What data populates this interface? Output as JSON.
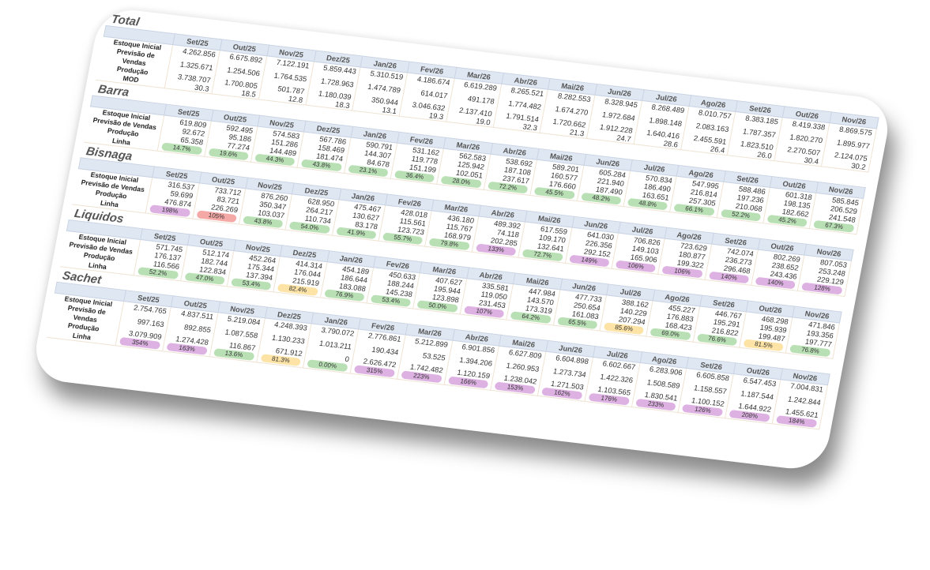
{
  "months": [
    "Set/25",
    "Out/25",
    "Nov/25",
    "Dez/25",
    "Jan/26",
    "Fev/26",
    "Mar/26",
    "Abr/26",
    "Mai/26",
    "Jun/26",
    "Jul/26",
    "Ago/26",
    "Set/26",
    "Out/26",
    "Nov/26"
  ],
  "badge_colors": {
    "green": "#b9e0b5",
    "yellow": "#fde4a6",
    "red": "#f5a9a6",
    "purple": "#ddb1e2"
  },
  "sections": [
    {
      "title": "Total",
      "rows": [
        {
          "label": "Estoque Inicial",
          "values": [
            "4.262.856",
            "6.675.892",
            "7.122.191",
            "5.859.443",
            "5.310.519",
            "4.186.674",
            "6.619.289",
            "8.265.521",
            "8.282.553",
            "8.328.945",
            "8.268.489",
            "8.010.757",
            "8.383.185",
            "8.419.338",
            "8.869.575"
          ]
        },
        {
          "label": "Previsão de Vendas",
          "values": [
            "1.325.671",
            "1.254.506",
            "1.764.535",
            "1.728.963",
            "1.474.789",
            "614.017",
            "491.178",
            "1.774.482",
            "1.674.270",
            "1.972.684",
            "1.898.148",
            "2.083.163",
            "1.787.357",
            "1.820.270",
            "1.895.977"
          ]
        },
        {
          "label": "Produção",
          "values": [
            "3.738.707",
            "1.700.805",
            "501.787",
            "1.180.039",
            "350.944",
            "3.046.632",
            "2.137.410",
            "1.791.514",
            "1.720.662",
            "1.912.228",
            "1.640.416",
            "2.455.591",
            "1.823.510",
            "2.270.507",
            "2.124.075"
          ]
        },
        {
          "label": "MOD",
          "values": [
            "30.3",
            "18.5",
            "12.8",
            "18.3",
            "13.1",
            "19.3",
            "19.0",
            "32.3",
            "21.3",
            "24.7",
            "28.6",
            "26.4",
            "26.0",
            "30.4",
            "30.2"
          ]
        }
      ]
    },
    {
      "title": "Barra",
      "rows": [
        {
          "label": "Estoque Inicial",
          "values": [
            "619.809",
            "592.495",
            "574.583",
            "567.786",
            "590.791",
            "531.162",
            "562.583",
            "538.692",
            "589.201",
            "605.284",
            "570.834",
            "547.995",
            "588.486",
            "601.318",
            "585.845"
          ]
        },
        {
          "label": "Previsão de Vendas",
          "values": [
            "92.672",
            "95.186",
            "151.286",
            "158.469",
            "144.307",
            "119.778",
            "125.942",
            "187.108",
            "160.577",
            "221.940",
            "186.490",
            "216.814",
            "197.236",
            "198.135",
            "206.529"
          ]
        },
        {
          "label": "Produção",
          "values": [
            "65.358",
            "77.274",
            "144.489",
            "181.474",
            "84.678",
            "151.199",
            "102.051",
            "237.617",
            "176.660",
            "187.490",
            "163.651",
            "257.305",
            "210.068",
            "182.662",
            "241.548"
          ]
        },
        {
          "label": "Linha",
          "values": [
            "14.7%",
            "19.6%",
            "44.3%",
            "43.8%",
            "23.1%",
            "36.4%",
            "28.0%",
            "72.2%",
            "45.5%",
            "48.2%",
            "48.8%",
            "66.1%",
            "52.2%",
            "45.2%",
            "67.3%"
          ],
          "status": [
            "green",
            "green",
            "green",
            "green",
            "green",
            "green",
            "green",
            "green",
            "green",
            "green",
            "green",
            "green",
            "green",
            "green",
            "green"
          ]
        }
      ]
    },
    {
      "title": "Bisnaga",
      "rows": [
        {
          "label": "Estoque Inicial",
          "values": [
            "316.537",
            "733.712",
            "876.260",
            "628.950",
            "475.467",
            "428.018",
            "436.180",
            "489.392",
            "617.559",
            "641.030",
            "706.826",
            "723.629",
            "742.074",
            "802.269",
            "807.053"
          ]
        },
        {
          "label": "Previsão de Vendas",
          "values": [
            "59.699",
            "83.721",
            "350.347",
            "264.217",
            "130.627",
            "115.561",
            "115.767",
            "74.118",
            "109.170",
            "226.356",
            "149.103",
            "180.877",
            "236.273",
            "238.652",
            "253.248"
          ]
        },
        {
          "label": "Produção",
          "values": [
            "476.874",
            "226.269",
            "103.037",
            "110.734",
            "83.178",
            "123.723",
            "168.979",
            "202.285",
            "132.641",
            "292.152",
            "165.906",
            "199.322",
            "296.468",
            "243.436",
            "229.129"
          ]
        },
        {
          "label": "Linha",
          "values": [
            "198%",
            "105%",
            "43.8%",
            "54.0%",
            "41.9%",
            "55.7%",
            "79.8%",
            "133%",
            "72.7%",
            "149%",
            "106%",
            "106%",
            "140%",
            "140%",
            "128%"
          ],
          "status": [
            "purple",
            "red",
            "green",
            "green",
            "green",
            "green",
            "green",
            "purple",
            "green",
            "purple",
            "purple",
            "purple",
            "purple",
            "purple",
            "purple"
          ]
        }
      ]
    },
    {
      "title": "Liquidos",
      "rows": [
        {
          "label": "Estoque Inicial",
          "values": [
            "571.745",
            "512.174",
            "452.264",
            "414.314",
            "454.189",
            "450.633",
            "407.627",
            "335.581",
            "447.984",
            "477.733",
            "388.162",
            "455.227",
            "446.767",
            "468.298",
            "471.846"
          ]
        },
        {
          "label": "Previsão de Vendas",
          "values": [
            "176.137",
            "182.744",
            "175.344",
            "176.044",
            "186.644",
            "188.244",
            "195.944",
            "119.050",
            "143.570",
            "250.654",
            "140.229",
            "176.883",
            "195.291",
            "195.939",
            "193.356"
          ]
        },
        {
          "label": "Produção",
          "values": [
            "116.566",
            "122.834",
            "137.394",
            "215.919",
            "183.088",
            "145.238",
            "123.898",
            "231.453",
            "173.319",
            "161.083",
            "207.294",
            "168.423",
            "216.822",
            "199.487",
            "197.777"
          ]
        },
        {
          "label": "Linha",
          "values": [
            "52.2%",
            "47.0%",
            "53.4%",
            "82.4%",
            "76.9%",
            "53.4%",
            "50.0%",
            "107%",
            "64.2%",
            "65.5%",
            "85.6%",
            "69.0%",
            "76.6%",
            "81.5%",
            "76.8%"
          ],
          "status": [
            "green",
            "green",
            "green",
            "yellow",
            "green",
            "green",
            "green",
            "purple",
            "green",
            "green",
            "yellow",
            "green",
            "green",
            "yellow",
            "green"
          ]
        }
      ]
    },
    {
      "title": "Sachet",
      "rows": [
        {
          "label": "Estoque Inicial",
          "values": [
            "2.754.765",
            "4.837.511",
            "5.219.084",
            "4.248.393",
            "3.790.072",
            "2.776.861",
            "5.212.899",
            "6.901.856",
            "6.627.809",
            "6.604.898",
            "6.602.667",
            "6.283.906",
            "6.605.858",
            "6.547.453",
            "7.004.831"
          ]
        },
        {
          "label": "Previsão de Vendas",
          "values": [
            "997.163",
            "892.855",
            "1.087.558",
            "1.130.233",
            "1.013.211",
            "190.434",
            "53.525",
            "1.394.206",
            "1.260.953",
            "1.273.734",
            "1.422.326",
            "1.508.589",
            "1.158.557",
            "1.187.544",
            "1.242.844"
          ]
        },
        {
          "label": "Produção",
          "values": [
            "3.079.909",
            "1.274.428",
            "116.867",
            "671.912",
            "0",
            "2.626.472",
            "1.742.482",
            "1.120.159",
            "1.238.042",
            "1.271.503",
            "1.103.565",
            "1.830.541",
            "1.100.152",
            "1.644.922",
            "1.455.621"
          ]
        },
        {
          "label": "Linha",
          "values": [
            "354%",
            "163%",
            "13.6%",
            "81.3%",
            "0.00%",
            "315%",
            "223%",
            "166%",
            "153%",
            "162%",
            "176%",
            "233%",
            "126%",
            "208%",
            "184%"
          ],
          "status": [
            "purple",
            "purple",
            "green",
            "yellow",
            "green",
            "purple",
            "purple",
            "purple",
            "purple",
            "purple",
            "purple",
            "purple",
            "purple",
            "purple",
            "purple"
          ]
        }
      ]
    }
  ]
}
